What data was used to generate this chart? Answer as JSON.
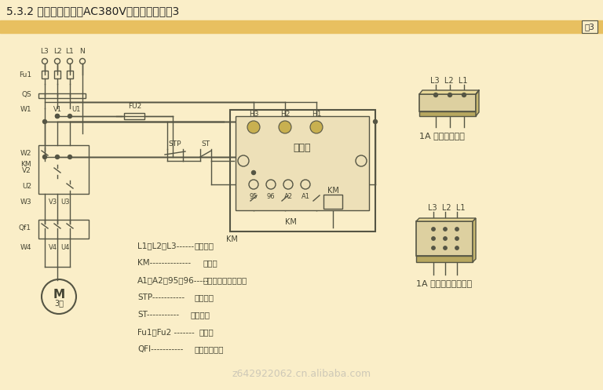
{
  "title": "5.3.2 控制电源电压为AC380V的接线图，见图3",
  "fig_label": "图3",
  "bg_color": "#faeec8",
  "header_color": "#e8c060",
  "line_color": "#555544",
  "dark_color": "#444433",
  "legend_items": [
    [
      "L1、L2、L3------",
      "三相电源"
    ],
    [
      "KM--------------",
      "接触器"
    ],
    [
      "A1、A2、95、96-----",
      "保护器接线端子号码"
    ],
    [
      "STP-----------",
      "停止按钮"
    ],
    [
      "ST-----------",
      "启动按钮"
    ],
    [
      "Fu1、Fu2 -------",
      "熔断器"
    ],
    [
      "QFl-----------",
      "电动机保护器"
    ]
  ],
  "watermark": "z642922062.cn.alibaba.com"
}
